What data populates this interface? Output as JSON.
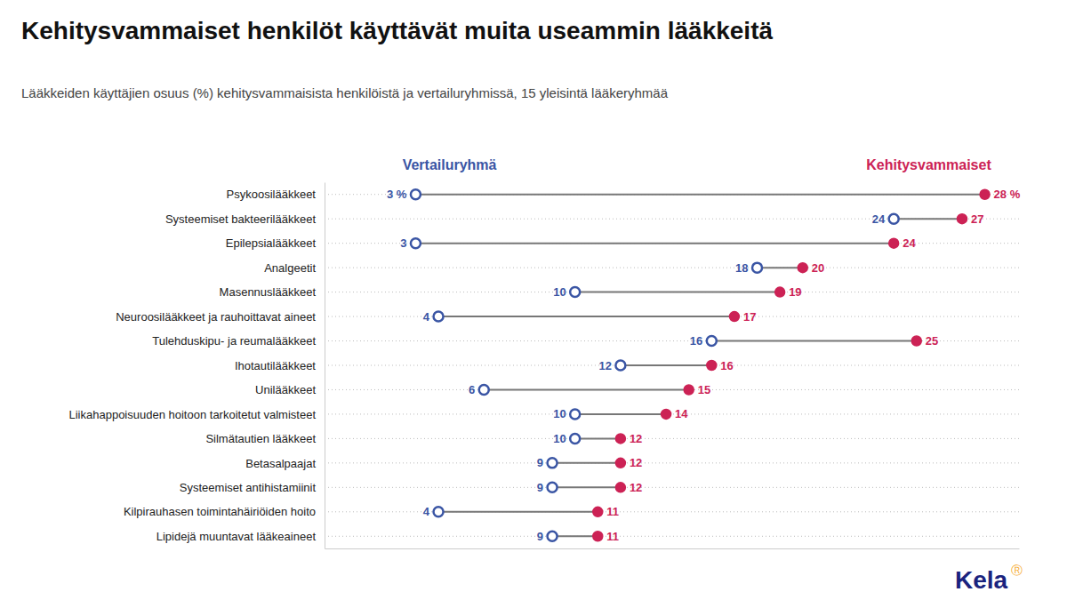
{
  "chart_data": {
    "type": "dumbbell",
    "title": "Kehitysvammaiset henkilöt käyttävät muita useammin lääkkeitä",
    "subtitle": "Lääkkeiden käyttäjien osuus (%) kehitysvammaisista henkilöistä ja vertailuryhmissä, 15 yleisintä lääkeryhmää",
    "orientation": "horizontal",
    "categories": [
      "Psykoosilääkkeet",
      "Systeemiset bakteerilääkkeet",
      "Epilepsialääkkeet",
      "Analgeetit",
      "Masennuslääkkeet",
      "Neuroosilääkkeet ja rauhoittavat aineet",
      "Tulehduskipu- ja reumalääkkeet",
      "Ihotautilääkkeet",
      "Unilääkkeet",
      "Liikahappoisuuden hoitoon tarkoitetut valmisteet",
      "Silmätautien lääkkeet",
      "Betasalpaajat",
      "Systeemiset antihistamiinit",
      "Kilpirauhasen toimintahäiriöiden hoito",
      "Lipidejä muuntavat lääkeaineet"
    ],
    "series": [
      {
        "name": "Vertailuryhmä",
        "color": "#3a55a4",
        "marker": "circle-open",
        "values": [
          3,
          24,
          3,
          18,
          10,
          4,
          16,
          12,
          6,
          10,
          10,
          9,
          9,
          4,
          9
        ],
        "value_labels": [
          "3 %",
          "24",
          "3",
          "18",
          "10",
          "4",
          "16",
          "12",
          "6",
          "10",
          "10",
          "9",
          "9",
          "4",
          "9"
        ]
      },
      {
        "name": "Kehitysvammaiset",
        "color": "#cc2255",
        "marker": "circle",
        "values": [
          28,
          27,
          24,
          20,
          19,
          17,
          25,
          16,
          15,
          14,
          12,
          12,
          12,
          11,
          11
        ],
        "value_labels": [
          "28 %",
          "27",
          "24",
          "20",
          "19",
          "17",
          "25",
          "16",
          "15",
          "14",
          "12",
          "12",
          "12",
          "11",
          "11"
        ]
      }
    ],
    "xlim": [
      -1,
      29.5
    ],
    "grid": true,
    "data_labels": true,
    "tick_labels": "y",
    "annotations": [
      {
        "text": "Kela",
        "color": "#1a237e"
      },
      {
        "text": "Ⓡ",
        "color": "#f5a623"
      }
    ]
  }
}
